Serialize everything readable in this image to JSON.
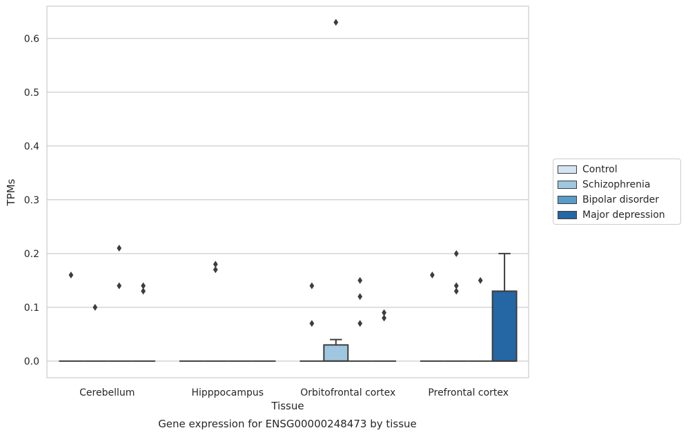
{
  "caption": "Gene expression for ENSG00000248473 by tissue",
  "chart_data": {
    "type": "box",
    "title": "",
    "xlabel": "Tissue",
    "ylabel": "TPMs",
    "ylim": [
      -0.031,
      0.66
    ],
    "yticks": [
      0.0,
      0.1,
      0.2,
      0.3,
      0.4,
      0.5,
      0.6
    ],
    "ytick_labels": [
      "0.0",
      "0.1",
      "0.2",
      "0.3",
      "0.4",
      "0.5",
      "0.6"
    ],
    "categories": [
      "Cerebellum",
      "Hipppocampus",
      "Orbitofrontal cortex",
      "Prefrontal cortex"
    ],
    "grid": "horizontal",
    "legend_position": "center-right",
    "series": [
      {
        "name": "Control",
        "color": "#d4e4f2",
        "boxes": [
          {
            "q1": 0,
            "median": 0,
            "q3": 0,
            "whisker_low": 0,
            "whisker_high": 0,
            "outliers": [
              0.16
            ]
          },
          {
            "q1": 0,
            "median": 0,
            "q3": 0,
            "whisker_low": 0,
            "whisker_high": 0,
            "outliers": []
          },
          {
            "q1": 0,
            "median": 0,
            "q3": 0,
            "whisker_low": 0,
            "whisker_high": 0,
            "outliers": [
              0.14,
              0.07
            ]
          },
          {
            "q1": 0,
            "median": 0,
            "q3": 0,
            "whisker_low": 0,
            "whisker_high": 0,
            "outliers": [
              0.16
            ]
          }
        ]
      },
      {
        "name": "Schizophrenia",
        "color": "#9fc7df",
        "boxes": [
          {
            "q1": 0,
            "median": 0,
            "q3": 0,
            "whisker_low": 0,
            "whisker_high": 0,
            "outliers": [
              0.1
            ]
          },
          {
            "q1": 0,
            "median": 0,
            "q3": 0,
            "whisker_low": 0,
            "whisker_high": 0,
            "outliers": [
              0.18,
              0.17
            ]
          },
          {
            "q1": 0,
            "median": 0,
            "q3": 0.03,
            "whisker_low": 0,
            "whisker_high": 0.04,
            "outliers": [
              0.63
            ]
          },
          {
            "q1": 0,
            "median": 0,
            "q3": 0,
            "whisker_low": 0,
            "whisker_high": 0,
            "outliers": [
              0.2,
              0.14,
              0.13
            ]
          }
        ]
      },
      {
        "name": "Bipolar disorder",
        "color": "#5a9cc7",
        "boxes": [
          {
            "q1": 0,
            "median": 0,
            "q3": 0,
            "whisker_low": 0,
            "whisker_high": 0,
            "outliers": [
              0.21,
              0.14
            ]
          },
          {
            "q1": 0,
            "median": 0,
            "q3": 0,
            "whisker_low": 0,
            "whisker_high": 0,
            "outliers": []
          },
          {
            "q1": 0,
            "median": 0,
            "q3": 0,
            "whisker_low": 0,
            "whisker_high": 0,
            "outliers": [
              0.15,
              0.12,
              0.07
            ]
          },
          {
            "q1": 0,
            "median": 0,
            "q3": 0,
            "whisker_low": 0,
            "whisker_high": 0,
            "outliers": [
              0.15
            ]
          }
        ]
      },
      {
        "name": "Major depression",
        "color": "#2566a4",
        "boxes": [
          {
            "q1": 0,
            "median": 0,
            "q3": 0,
            "whisker_low": 0,
            "whisker_high": 0,
            "outliers": [
              0.14,
              0.13
            ]
          },
          {
            "q1": 0,
            "median": 0,
            "q3": 0,
            "whisker_low": 0,
            "whisker_high": 0,
            "outliers": []
          },
          {
            "q1": 0,
            "median": 0,
            "q3": 0,
            "whisker_low": 0,
            "whisker_high": 0,
            "outliers": [
              0.09,
              0.08
            ]
          },
          {
            "q1": 0,
            "median": 0,
            "q3": 0.13,
            "whisker_low": 0,
            "whisker_high": 0.2,
            "outliers": []
          }
        ]
      }
    ]
  }
}
